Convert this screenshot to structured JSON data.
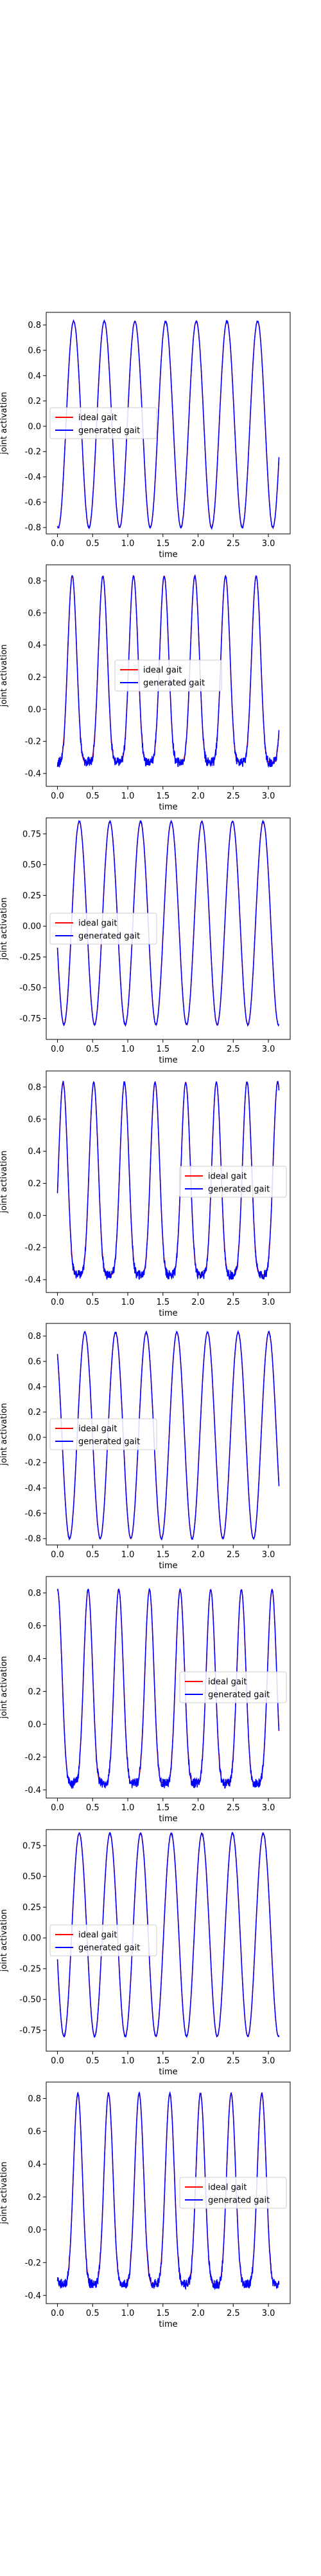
{
  "chart_data": [
    {
      "type": "line",
      "xlabel": "time",
      "ylabel": "joint activation",
      "xlim": [
        -0.16,
        3.31
      ],
      "ylim": [
        -0.85,
        0.9
      ],
      "xticks": [
        "0.0",
        "0.5",
        "1.0",
        "1.5",
        "2.0",
        "2.5",
        "3.0"
      ],
      "yticks": [
        "0.8",
        "0.6",
        "0.4",
        "0.2",
        "0.0",
        "-0.2",
        "-0.4",
        "-0.6",
        "-0.8"
      ],
      "legend": "center-left",
      "series": [
        {
          "name": "ideal gait",
          "color": "#ff0000"
        },
        {
          "name": "generated gait",
          "color": "#0000ff"
        }
      ],
      "waveform": {
        "shape": "sine",
        "min": -0.8,
        "max": 0.83,
        "period": 0.436,
        "peak_time": 0.23,
        "duration": 3.15
      }
    },
    {
      "type": "line",
      "xlabel": "time",
      "ylabel": "joint activation",
      "xlim": [
        -0.16,
        3.31
      ],
      "ylim": [
        -0.48,
        0.9
      ],
      "xticks": [
        "0.0",
        "0.5",
        "1.0",
        "1.5",
        "2.0",
        "2.5",
        "3.0"
      ],
      "yticks": [
        "0.8",
        "0.6",
        "0.4",
        "0.2",
        "0.0",
        "-0.2",
        "-0.4"
      ],
      "legend": "center",
      "series": [
        {
          "name": "ideal gait",
          "color": "#ff0000"
        },
        {
          "name": "generated gait",
          "color": "#0000ff"
        }
      ],
      "waveform": {
        "shape": "pulse",
        "min": -0.33,
        "max": 0.83,
        "period": 0.436,
        "peak_time": 0.21,
        "duration": 3.15
      }
    },
    {
      "type": "line",
      "xlabel": "time",
      "ylabel": "joint activation",
      "xlim": [
        -0.16,
        3.31
      ],
      "ylim": [
        -0.92,
        0.88
      ],
      "xticks": [
        "0.0",
        "0.5",
        "1.0",
        "1.5",
        "2.0",
        "2.5",
        "3.0"
      ],
      "yticks": [
        "0.75",
        "0.50",
        "0.25",
        "0.00",
        "-0.25",
        "-0.50",
        "-0.75"
      ],
      "legend": "center-left",
      "series": [
        {
          "name": "ideal gait",
          "color": "#ff0000"
        },
        {
          "name": "generated gait",
          "color": "#0000ff"
        }
      ],
      "waveform": {
        "shape": "sine",
        "min": -0.8,
        "max": 0.85,
        "period": 0.436,
        "peak_time": 0.31,
        "duration": 3.15
      }
    },
    {
      "type": "line",
      "xlabel": "time",
      "ylabel": "joint activation",
      "xlim": [
        -0.16,
        3.31
      ],
      "ylim": [
        -0.48,
        0.9
      ],
      "xticks": [
        "0.0",
        "0.5",
        "1.0",
        "1.5",
        "2.0",
        "2.5",
        "3.0"
      ],
      "yticks": [
        "0.8",
        "0.6",
        "0.4",
        "0.2",
        "0.0",
        "-0.2",
        "-0.4"
      ],
      "legend": "center-right",
      "series": [
        {
          "name": "ideal gait",
          "color": "#ff0000"
        },
        {
          "name": "generated gait",
          "color": "#0000ff"
        }
      ],
      "waveform": {
        "shape": "pulse",
        "min": -0.37,
        "max": 0.83,
        "period": 0.436,
        "peak_time": 0.08,
        "duration": 3.15
      }
    },
    {
      "type": "line",
      "xlabel": "time",
      "ylabel": "joint activation",
      "xlim": [
        -0.16,
        3.31
      ],
      "ylim": [
        -0.85,
        0.9
      ],
      "xticks": [
        "0.0",
        "0.5",
        "1.0",
        "1.5",
        "2.0",
        "2.5",
        "3.0"
      ],
      "yticks": [
        "0.8",
        "0.6",
        "0.4",
        "0.2",
        "0.0",
        "-0.2",
        "-0.4",
        "-0.6",
        "-0.8"
      ],
      "legend": "center-left",
      "series": [
        {
          "name": "ideal gait",
          "color": "#ff0000"
        },
        {
          "name": "generated gait",
          "color": "#0000ff"
        }
      ],
      "waveform": {
        "shape": "sine",
        "min": -0.8,
        "max": 0.83,
        "period": 0.436,
        "peak_time": 0.39,
        "duration": 3.15
      }
    },
    {
      "type": "line",
      "xlabel": "time",
      "ylabel": "joint activation",
      "xlim": [
        -0.16,
        3.31
      ],
      "ylim": [
        -0.45,
        0.9
      ],
      "xticks": [
        "0.0",
        "0.5",
        "1.0",
        "1.5",
        "2.0",
        "2.5",
        "3.0"
      ],
      "yticks": [
        "0.8",
        "0.6",
        "0.4",
        "0.2",
        "0.0",
        "-0.2",
        "-0.4"
      ],
      "legend": "center-right",
      "series": [
        {
          "name": "ideal gait",
          "color": "#ff0000"
        },
        {
          "name": "generated gait",
          "color": "#0000ff"
        }
      ],
      "waveform": {
        "shape": "pulse",
        "min": -0.36,
        "max": 0.82,
        "period": 0.436,
        "peak_time": 0.0,
        "duration": 3.15
      }
    },
    {
      "type": "line",
      "xlabel": "time",
      "ylabel": "joint activation",
      "xlim": [
        -0.16,
        3.31
      ],
      "ylim": [
        -0.92,
        0.88
      ],
      "xticks": [
        "0.0",
        "0.5",
        "1.0",
        "1.5",
        "2.0",
        "2.5",
        "3.0"
      ],
      "yticks": [
        "0.75",
        "0.50",
        "0.25",
        "0.00",
        "-0.25",
        "-0.50",
        "-0.75"
      ],
      "legend": "center-left",
      "series": [
        {
          "name": "ideal gait",
          "color": "#ff0000"
        },
        {
          "name": "generated gait",
          "color": "#0000ff"
        }
      ],
      "waveform": {
        "shape": "sine",
        "min": -0.8,
        "max": 0.85,
        "period": 0.436,
        "peak_time": 0.31,
        "duration": 3.15
      }
    },
    {
      "type": "line",
      "xlabel": "time",
      "ylabel": "joint activation",
      "xlim": [
        -0.16,
        3.31
      ],
      "ylim": [
        -0.45,
        0.9
      ],
      "xticks": [
        "0.0",
        "0.5",
        "1.0",
        "1.5",
        "2.0",
        "2.5",
        "3.0"
      ],
      "yticks": [
        "0.8",
        "0.6",
        "0.4",
        "0.2",
        "0.0",
        "-0.2",
        "-0.4"
      ],
      "legend": "center-right",
      "series": [
        {
          "name": "ideal gait",
          "color": "#ff0000"
        },
        {
          "name": "generated gait",
          "color": "#0000ff"
        }
      ],
      "waveform": {
        "shape": "pulse",
        "min": -0.33,
        "max": 0.83,
        "period": 0.436,
        "peak_time": 0.29,
        "duration": 3.15
      }
    }
  ]
}
